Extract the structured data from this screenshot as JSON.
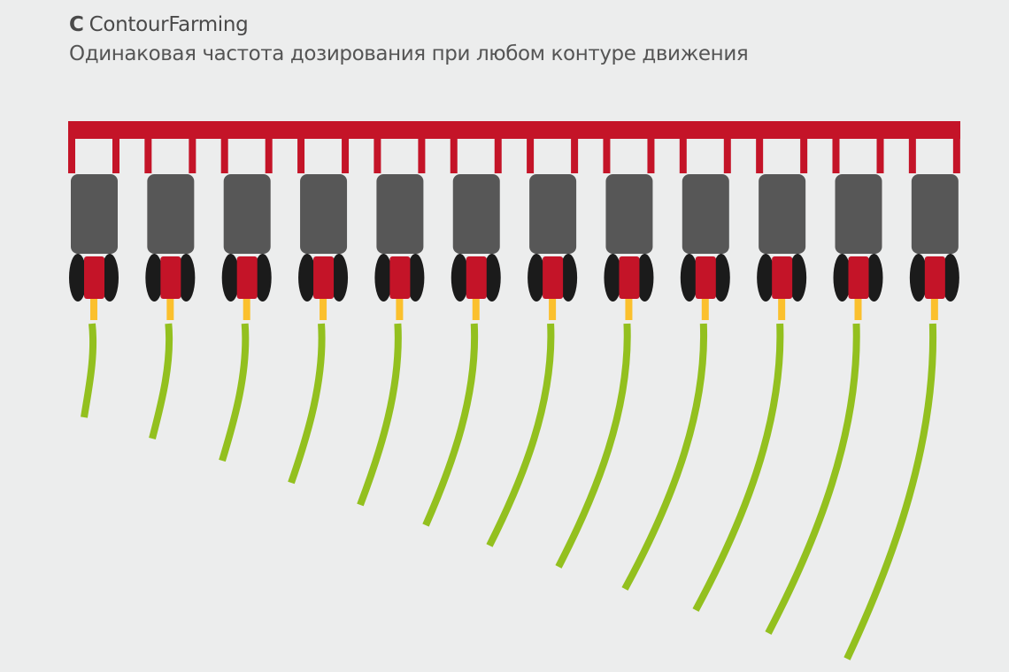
{
  "header": {
    "label_letter": "C",
    "title": "ContourFarming",
    "subtitle": "Одинаковая частота дозирования при любом контуре движения"
  },
  "diagram": {
    "row_units": 12,
    "colors": {
      "frame": "#c41428",
      "hopper": "#575757",
      "wheels": "#1b1b1b",
      "meter": "#c41428",
      "seed_tube": "#fbc02d",
      "seed_row": "#93c01f",
      "background": "#eceded"
    }
  }
}
